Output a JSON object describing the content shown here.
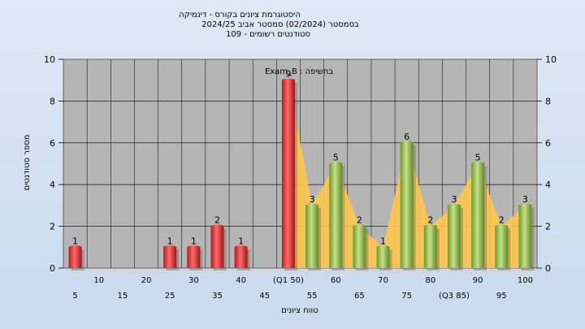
{
  "chart_data": {
    "type": "bar",
    "title_lines": [
      "היסטוגרמת ציונים בקורס - דינמיקה",
      "בסמסטר  (02/2024)  סמסטר אביב 2024/25",
      "סטודנטים רשומים - 109"
    ],
    "annotation": "בחשיפה : Exam_B",
    "ylabel": "מספר סטודנטים",
    "xlabel": "טווח ציונים",
    "ylim": [
      0,
      10
    ],
    "yticks": [
      0,
      2,
      4,
      6,
      8,
      10
    ],
    "categories": [
      "5",
      "10",
      "15",
      "20",
      "25",
      "30",
      "35",
      "40",
      "45",
      "(Q1 50)",
      "55",
      "60",
      "65",
      "70",
      "75",
      "80",
      "(Q3 85)",
      "90",
      "95",
      "100"
    ],
    "values": [
      1,
      0,
      0,
      0,
      1,
      1,
      2,
      1,
      0,
      9,
      3,
      5,
      2,
      1,
      6,
      2,
      3,
      5,
      2,
      3
    ],
    "colors": {
      "below": "#d42a2a",
      "above": "#7fad3a",
      "area": "#ffc64f",
      "plot_bg": "#b5b5b5"
    }
  }
}
